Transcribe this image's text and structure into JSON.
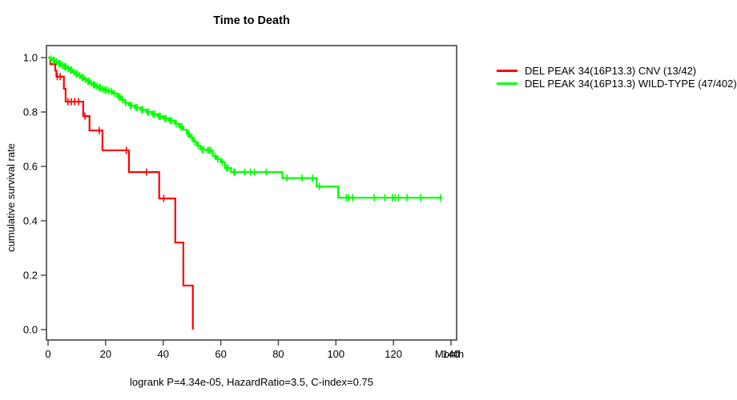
{
  "page": {
    "background": "#ffffff"
  },
  "chart_data": {
    "type": "line",
    "subtype": "kaplan-meier-step-curves",
    "title": "Time to Death",
    "xlabel": "Month",
    "ylabel": "cumulative survival rate",
    "footer": "logrank P=4.34e-05, HazardRatio=3.5, C-index=0.75",
    "xlim": [
      0,
      140
    ],
    "ylim": [
      0.0,
      1.0
    ],
    "xticks": [
      "0",
      "20",
      "40",
      "60",
      "80",
      "100",
      "120",
      "140"
    ],
    "yticks": [
      "0.0",
      "0.2",
      "0.4",
      "0.6",
      "0.8",
      "1.0"
    ],
    "grid": false,
    "legend_position": "right",
    "axis_color": "#444444",
    "tick_text_color": "#000000",
    "series": [
      {
        "name": "DEL PEAK 34(16P13.3) CNV (13/42)",
        "color": "#ff0000",
        "steps": [
          [
            0,
            1.0
          ],
          [
            0.8,
            0.976
          ],
          [
            2.5,
            0.952
          ],
          [
            2.9,
            0.93
          ],
          [
            5.5,
            0.885
          ],
          [
            6.1,
            0.838
          ],
          [
            12.2,
            0.785
          ],
          [
            14.4,
            0.732
          ],
          [
            18.9,
            0.659
          ],
          [
            28.1,
            0.579
          ],
          [
            38.6,
            0.482
          ],
          [
            44.2,
            0.32
          ],
          [
            47.0,
            0.162
          ],
          [
            50.3,
            0.0
          ]
        ],
        "censor_months": [
          3.2,
          4.2,
          6.9,
          8.1,
          9.2,
          10.6,
          12.8,
          17.8,
          27.2,
          34.2,
          40.2
        ]
      },
      {
        "name": "DEL PEAK 34(16P13.3) WILD-TYPE (47/402)",
        "color": "#00ff00",
        "steps": [
          [
            0,
            1.0
          ],
          [
            0.8,
            0.995
          ],
          [
            1.5,
            0.99
          ],
          [
            2.5,
            0.984
          ],
          [
            3.5,
            0.978
          ],
          [
            4.5,
            0.972
          ],
          [
            5.5,
            0.966
          ],
          [
            6.5,
            0.96
          ],
          [
            7.5,
            0.954
          ],
          [
            8.5,
            0.947
          ],
          [
            9.5,
            0.94
          ],
          [
            10.5,
            0.934
          ],
          [
            11.5,
            0.927
          ],
          [
            12.5,
            0.92
          ],
          [
            13.5,
            0.913
          ],
          [
            14.5,
            0.906
          ],
          [
            15.5,
            0.9
          ],
          [
            16.5,
            0.894
          ],
          [
            17.5,
            0.889
          ],
          [
            18.5,
            0.885
          ],
          [
            19.5,
            0.881
          ],
          [
            20.5,
            0.878
          ],
          [
            21.4,
            0.876
          ],
          [
            22.5,
            0.868
          ],
          [
            24,
            0.856
          ],
          [
            25.5,
            0.844
          ],
          [
            26.8,
            0.834
          ],
          [
            28,
            0.824
          ],
          [
            30,
            0.816
          ],
          [
            32,
            0.808
          ],
          [
            34,
            0.8
          ],
          [
            36,
            0.792
          ],
          [
            38,
            0.784
          ],
          [
            40,
            0.776
          ],
          [
            42,
            0.768
          ],
          [
            44,
            0.757
          ],
          [
            45.5,
            0.746
          ],
          [
            47,
            0.735
          ],
          [
            48.2,
            0.72
          ],
          [
            49.4,
            0.706
          ],
          [
            50.5,
            0.691
          ],
          [
            51.7,
            0.676
          ],
          [
            53,
            0.662
          ],
          [
            55,
            0.659
          ],
          [
            57.2,
            0.638
          ],
          [
            58.5,
            0.627
          ],
          [
            60,
            0.615
          ],
          [
            61.4,
            0.594
          ],
          [
            63.6,
            0.579
          ],
          [
            81.4,
            0.557
          ],
          [
            93.3,
            0.526
          ],
          [
            100.8,
            0.485
          ],
          [
            137,
            0.485
          ]
        ],
        "censor_months": [
          1,
          1.8,
          2.2,
          3,
          3.8,
          4.2,
          5,
          5.8,
          6.2,
          7,
          7.8,
          8.2,
          9,
          9.8,
          10.2,
          11,
          11.8,
          12.2,
          13,
          13.8,
          14.2,
          15,
          15.8,
          16.2,
          17,
          17.8,
          18.2,
          19,
          19.8,
          20.2,
          21,
          22,
          23,
          24.5,
          25,
          26,
          27,
          28.5,
          29,
          30.5,
          31,
          32.5,
          33,
          34.5,
          35,
          36.5,
          37,
          38.5,
          39,
          40.5,
          41,
          42.5,
          43,
          44.5,
          46,
          46.5,
          48.6,
          49,
          50,
          51,
          52.2,
          53.5,
          54,
          55.5,
          56,
          56.6,
          58,
          59,
          60.5,
          62,
          62.5,
          64.5,
          65,
          68.3,
          70.3,
          71.7,
          75.8,
          83,
          88.3,
          91.9,
          94.3,
          103.6,
          104.4,
          105.8,
          113.3,
          117,
          119.7,
          120.6,
          121.7,
          124.7,
          129.4,
          136.4
        ]
      }
    ]
  }
}
